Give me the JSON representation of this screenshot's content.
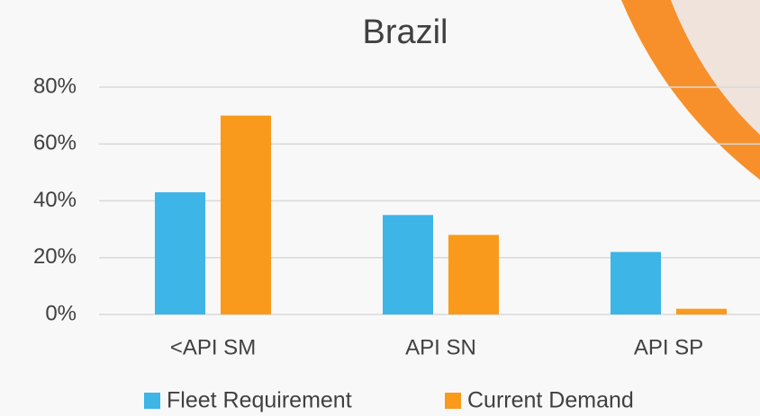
{
  "chart_data": {
    "type": "bar",
    "title": "Brazil",
    "categories": [
      "<API SM",
      "API SN",
      "API SP"
    ],
    "series": [
      {
        "name": "Fleet Requirement",
        "color": "#3db5e6",
        "values": [
          43,
          35,
          22
        ]
      },
      {
        "name": "Current Demand",
        "color": "#f99a1c",
        "values": [
          70,
          28,
          2
        ]
      }
    ],
    "ylim": [
      0,
      80
    ],
    "yticks": [
      {
        "value": 0,
        "label": "0%"
      },
      {
        "value": 20,
        "label": "20%"
      },
      {
        "value": 40,
        "label": "40%"
      },
      {
        "value": 60,
        "label": "60%"
      },
      {
        "value": 80,
        "label": "80%"
      }
    ],
    "grid": true,
    "legend": "bottom"
  }
}
